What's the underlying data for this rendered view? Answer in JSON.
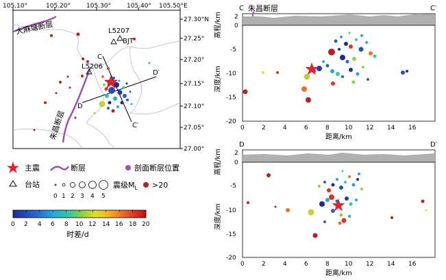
{
  "map": {
    "lon_ticks": [
      "105.10°",
      "105.20°",
      "105.30°",
      "105.40°",
      "105.50°E"
    ],
    "lat_ticks": [
      "27.30°N",
      "27.25°",
      "27.20°",
      "27.15°",
      "27.10°",
      "27.05°",
      "27.00°"
    ],
    "fault_labels": [
      "大麻塘断层",
      "朱昌断层"
    ],
    "stations": [
      "L5207",
      "BJT",
      "L5206"
    ],
    "profile_points": [
      "C",
      "D",
      "D′",
      "C′"
    ]
  },
  "profile_cc": {
    "label_left": "C",
    "label_right": "C′",
    "fault_label": "朱昌断层",
    "elev_label": "高程/km",
    "elev_ticks": [
      "2",
      "0"
    ],
    "depth_label": "深度/km",
    "depth_ticks": [
      "0",
      "-5",
      "-10",
      "-15",
      "-20"
    ],
    "x_label": "距离/km",
    "x_ticks": [
      "0",
      "2",
      "4",
      "6",
      "8",
      "10",
      "12",
      "14",
      "16"
    ]
  },
  "profile_dd": {
    "label_left": "D",
    "label_right": "D′",
    "elev_label": "高程/km",
    "elev_ticks": [
      "2",
      "0"
    ],
    "depth_label": "深度/km",
    "depth_ticks": [
      "0",
      "-5",
      "-10",
      "-15",
      "-20"
    ],
    "x_label": "距离/km",
    "x_ticks": [
      "0",
      "2",
      "4",
      "6",
      "8",
      "10",
      "12",
      "14",
      "16"
    ]
  },
  "legend": {
    "mainshock": "主震",
    "fault": "断层",
    "section_fault": "剖面断层位置",
    "station": "台站",
    "magnitude": "震级M",
    "magnitude_sub": "L",
    "mag_values": [
      "0",
      "1",
      "2",
      "3",
      "4",
      "5"
    ],
    "over20": ">20",
    "colorbar_ticks": [
      "0",
      "2",
      "4",
      "6",
      "8",
      "10",
      "12",
      "14",
      "16",
      "18",
      "20"
    ],
    "colorbar_title": "时差/d"
  },
  "colors": {
    "fault": "#a050b0",
    "mainshock": "#e8202a",
    "over20": "#b22222",
    "profile_fill": "#b0b0b0"
  }
}
